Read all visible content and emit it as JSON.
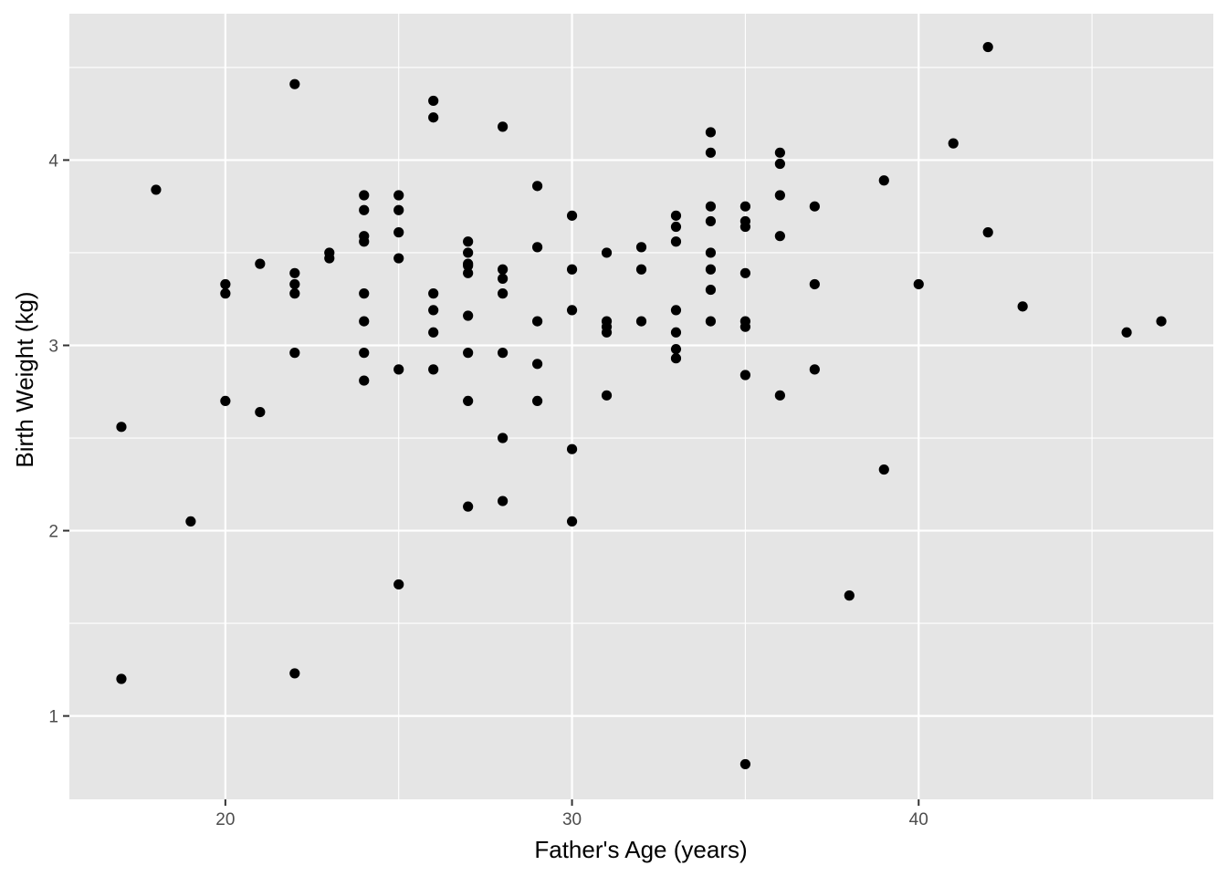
{
  "chart_data": {
    "type": "scatter",
    "title": "",
    "xlabel": "Father's Age (years)",
    "ylabel": "Birth Weight (kg)",
    "xlim": [
      15.5,
      48.5
    ],
    "ylim": [
      0.55,
      4.79
    ],
    "x_ticks": [
      20,
      30,
      40
    ],
    "x_tick_labels": [
      "20",
      "30",
      "40"
    ],
    "x_minor_ticks": [
      25,
      35,
      45
    ],
    "y_ticks": [
      1,
      2,
      3,
      4
    ],
    "y_tick_labels": [
      "1",
      "2",
      "3",
      "4"
    ],
    "y_minor_ticks": [
      1.5,
      2.5,
      3.5,
      4.5
    ],
    "grid": true,
    "colors": {
      "panel": "#e5e5e5",
      "grid": "#ffffff",
      "point": "#000000",
      "tick": "#333333"
    },
    "points": [
      [
        17,
        2.56
      ],
      [
        17,
        1.2
      ],
      [
        18,
        3.84
      ],
      [
        19,
        2.05
      ],
      [
        20,
        3.33
      ],
      [
        20,
        3.28
      ],
      [
        20,
        2.7
      ],
      [
        21,
        3.44
      ],
      [
        21,
        2.64
      ],
      [
        22,
        4.41
      ],
      [
        22,
        3.39
      ],
      [
        22,
        3.33
      ],
      [
        22,
        3.28
      ],
      [
        22,
        2.96
      ],
      [
        22,
        1.23
      ],
      [
        23,
        3.5
      ],
      [
        23,
        3.47
      ],
      [
        24,
        3.81
      ],
      [
        24,
        3.73
      ],
      [
        24,
        3.59
      ],
      [
        24,
        3.56
      ],
      [
        24,
        3.28
      ],
      [
        24,
        3.13
      ],
      [
        24,
        2.96
      ],
      [
        24,
        2.81
      ],
      [
        25,
        3.81
      ],
      [
        25,
        3.73
      ],
      [
        25,
        3.61
      ],
      [
        25,
        3.47
      ],
      [
        25,
        2.87
      ],
      [
        25,
        1.71
      ],
      [
        26,
        4.32
      ],
      [
        26,
        4.23
      ],
      [
        26,
        3.28
      ],
      [
        26,
        3.19
      ],
      [
        26,
        3.07
      ],
      [
        26,
        2.87
      ],
      [
        27,
        3.56
      ],
      [
        27,
        3.5
      ],
      [
        27,
        3.44
      ],
      [
        27,
        3.43
      ],
      [
        27,
        3.39
      ],
      [
        27,
        3.16
      ],
      [
        27,
        2.96
      ],
      [
        27,
        2.7
      ],
      [
        27,
        2.13
      ],
      [
        28,
        4.18
      ],
      [
        28,
        3.41
      ],
      [
        28,
        3.36
      ],
      [
        28,
        3.28
      ],
      [
        28,
        2.96
      ],
      [
        28,
        2.5
      ],
      [
        28,
        2.16
      ],
      [
        29,
        3.86
      ],
      [
        29,
        3.53
      ],
      [
        29,
        3.13
      ],
      [
        29,
        2.9
      ],
      [
        29,
        2.7
      ],
      [
        30,
        3.7
      ],
      [
        30,
        3.41
      ],
      [
        30,
        3.19
      ],
      [
        30,
        2.44
      ],
      [
        30,
        2.05
      ],
      [
        31,
        3.5
      ],
      [
        31,
        3.13
      ],
      [
        31,
        3.1
      ],
      [
        31,
        3.07
      ],
      [
        31,
        2.73
      ],
      [
        32,
        3.53
      ],
      [
        32,
        3.41
      ],
      [
        32,
        3.13
      ],
      [
        33,
        3.7
      ],
      [
        33,
        3.64
      ],
      [
        33,
        3.56
      ],
      [
        33,
        3.19
      ],
      [
        33,
        3.07
      ],
      [
        33,
        2.98
      ],
      [
        33,
        2.93
      ],
      [
        34,
        4.15
      ],
      [
        34,
        4.04
      ],
      [
        34,
        3.75
      ],
      [
        34,
        3.67
      ],
      [
        34,
        3.5
      ],
      [
        34,
        3.41
      ],
      [
        34,
        3.3
      ],
      [
        34,
        3.13
      ],
      [
        35,
        3.75
      ],
      [
        35,
        3.67
      ],
      [
        35,
        3.64
      ],
      [
        35,
        3.39
      ],
      [
        35,
        3.13
      ],
      [
        35,
        3.1
      ],
      [
        35,
        2.84
      ],
      [
        35,
        0.74
      ],
      [
        36,
        4.04
      ],
      [
        36,
        3.98
      ],
      [
        36,
        3.81
      ],
      [
        36,
        3.59
      ],
      [
        36,
        2.73
      ],
      [
        37,
        3.75
      ],
      [
        37,
        3.33
      ],
      [
        37,
        2.87
      ],
      [
        38,
        1.65
      ],
      [
        39,
        3.89
      ],
      [
        39,
        2.33
      ],
      [
        40,
        3.33
      ],
      [
        41,
        4.09
      ],
      [
        42,
        4.61
      ],
      [
        42,
        3.61
      ],
      [
        43,
        3.21
      ],
      [
        46,
        3.07
      ],
      [
        47,
        3.13
      ]
    ]
  }
}
